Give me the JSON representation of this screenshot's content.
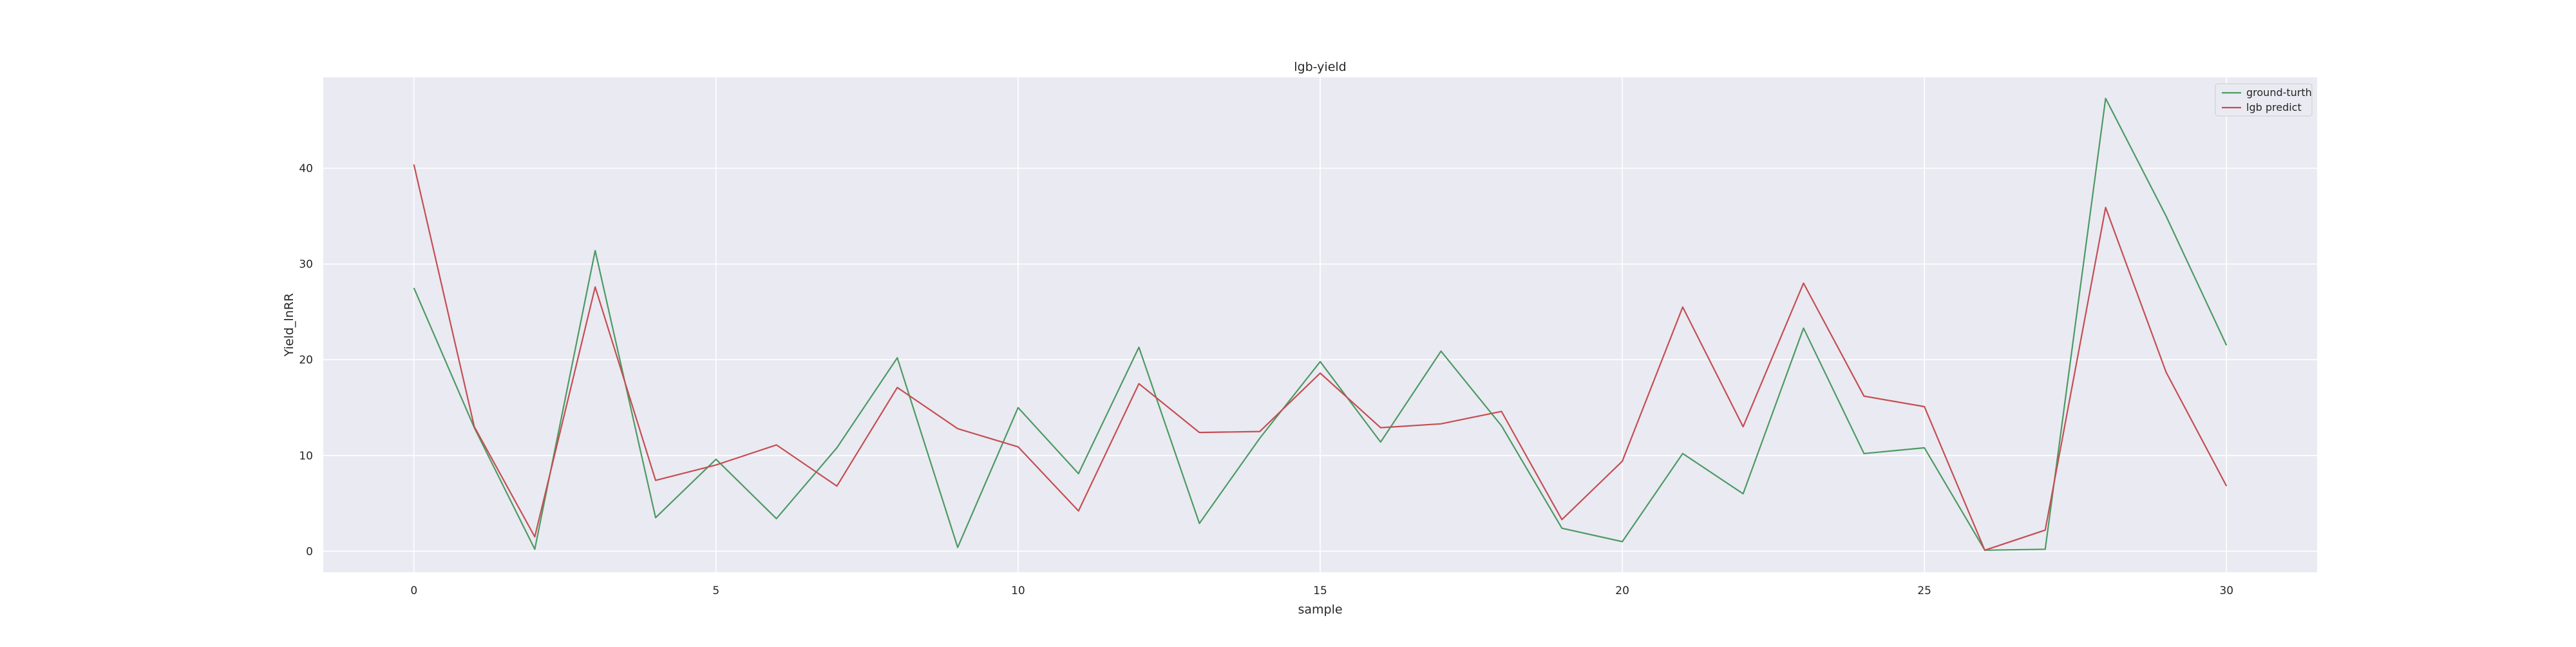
{
  "chart_data": {
    "type": "line",
    "title": "lgb-yield",
    "xlabel": "sample",
    "ylabel": "Yield_lnRR",
    "x": [
      0,
      1,
      2,
      3,
      4,
      5,
      6,
      7,
      8,
      9,
      10,
      11,
      12,
      13,
      14,
      15,
      16,
      17,
      18,
      19,
      20,
      21,
      22,
      23,
      24,
      25,
      26,
      27,
      28,
      29,
      30
    ],
    "xlim": [
      -1.5,
      31.5
    ],
    "ylim": [
      -2.2,
      49.5
    ],
    "xticks": [
      0,
      5,
      10,
      15,
      20,
      25,
      30
    ],
    "yticks": [
      0,
      10,
      20,
      30,
      40
    ],
    "grid": true,
    "legend_position": "top-right",
    "background_color": "#eaeaf2",
    "grid_color": "#ffffff",
    "series": [
      {
        "name": "ground-turth",
        "color": "#4c9a63",
        "values": [
          27.5,
          12.9,
          0.2,
          31.4,
          3.5,
          9.6,
          3.4,
          10.8,
          20.2,
          0.4,
          15.0,
          8.1,
          21.3,
          2.9,
          11.8,
          19.8,
          11.4,
          20.9,
          13.1,
          2.4,
          1.0,
          10.2,
          6.0,
          23.3,
          10.2,
          10.8,
          0.1,
          0.2,
          47.3,
          35.0,
          21.5
        ]
      },
      {
        "name": "lgb predict",
        "color": "#c44e52",
        "values": [
          40.4,
          13.0,
          1.5,
          27.6,
          7.4,
          9.0,
          11.1,
          6.8,
          17.1,
          12.8,
          10.9,
          4.2,
          17.5,
          12.4,
          12.5,
          18.6,
          12.9,
          13.3,
          14.6,
          3.3,
          9.4,
          25.5,
          13.0,
          28.0,
          16.2,
          15.1,
          0.1,
          2.2,
          35.9,
          18.7,
          6.8
        ]
      }
    ]
  }
}
